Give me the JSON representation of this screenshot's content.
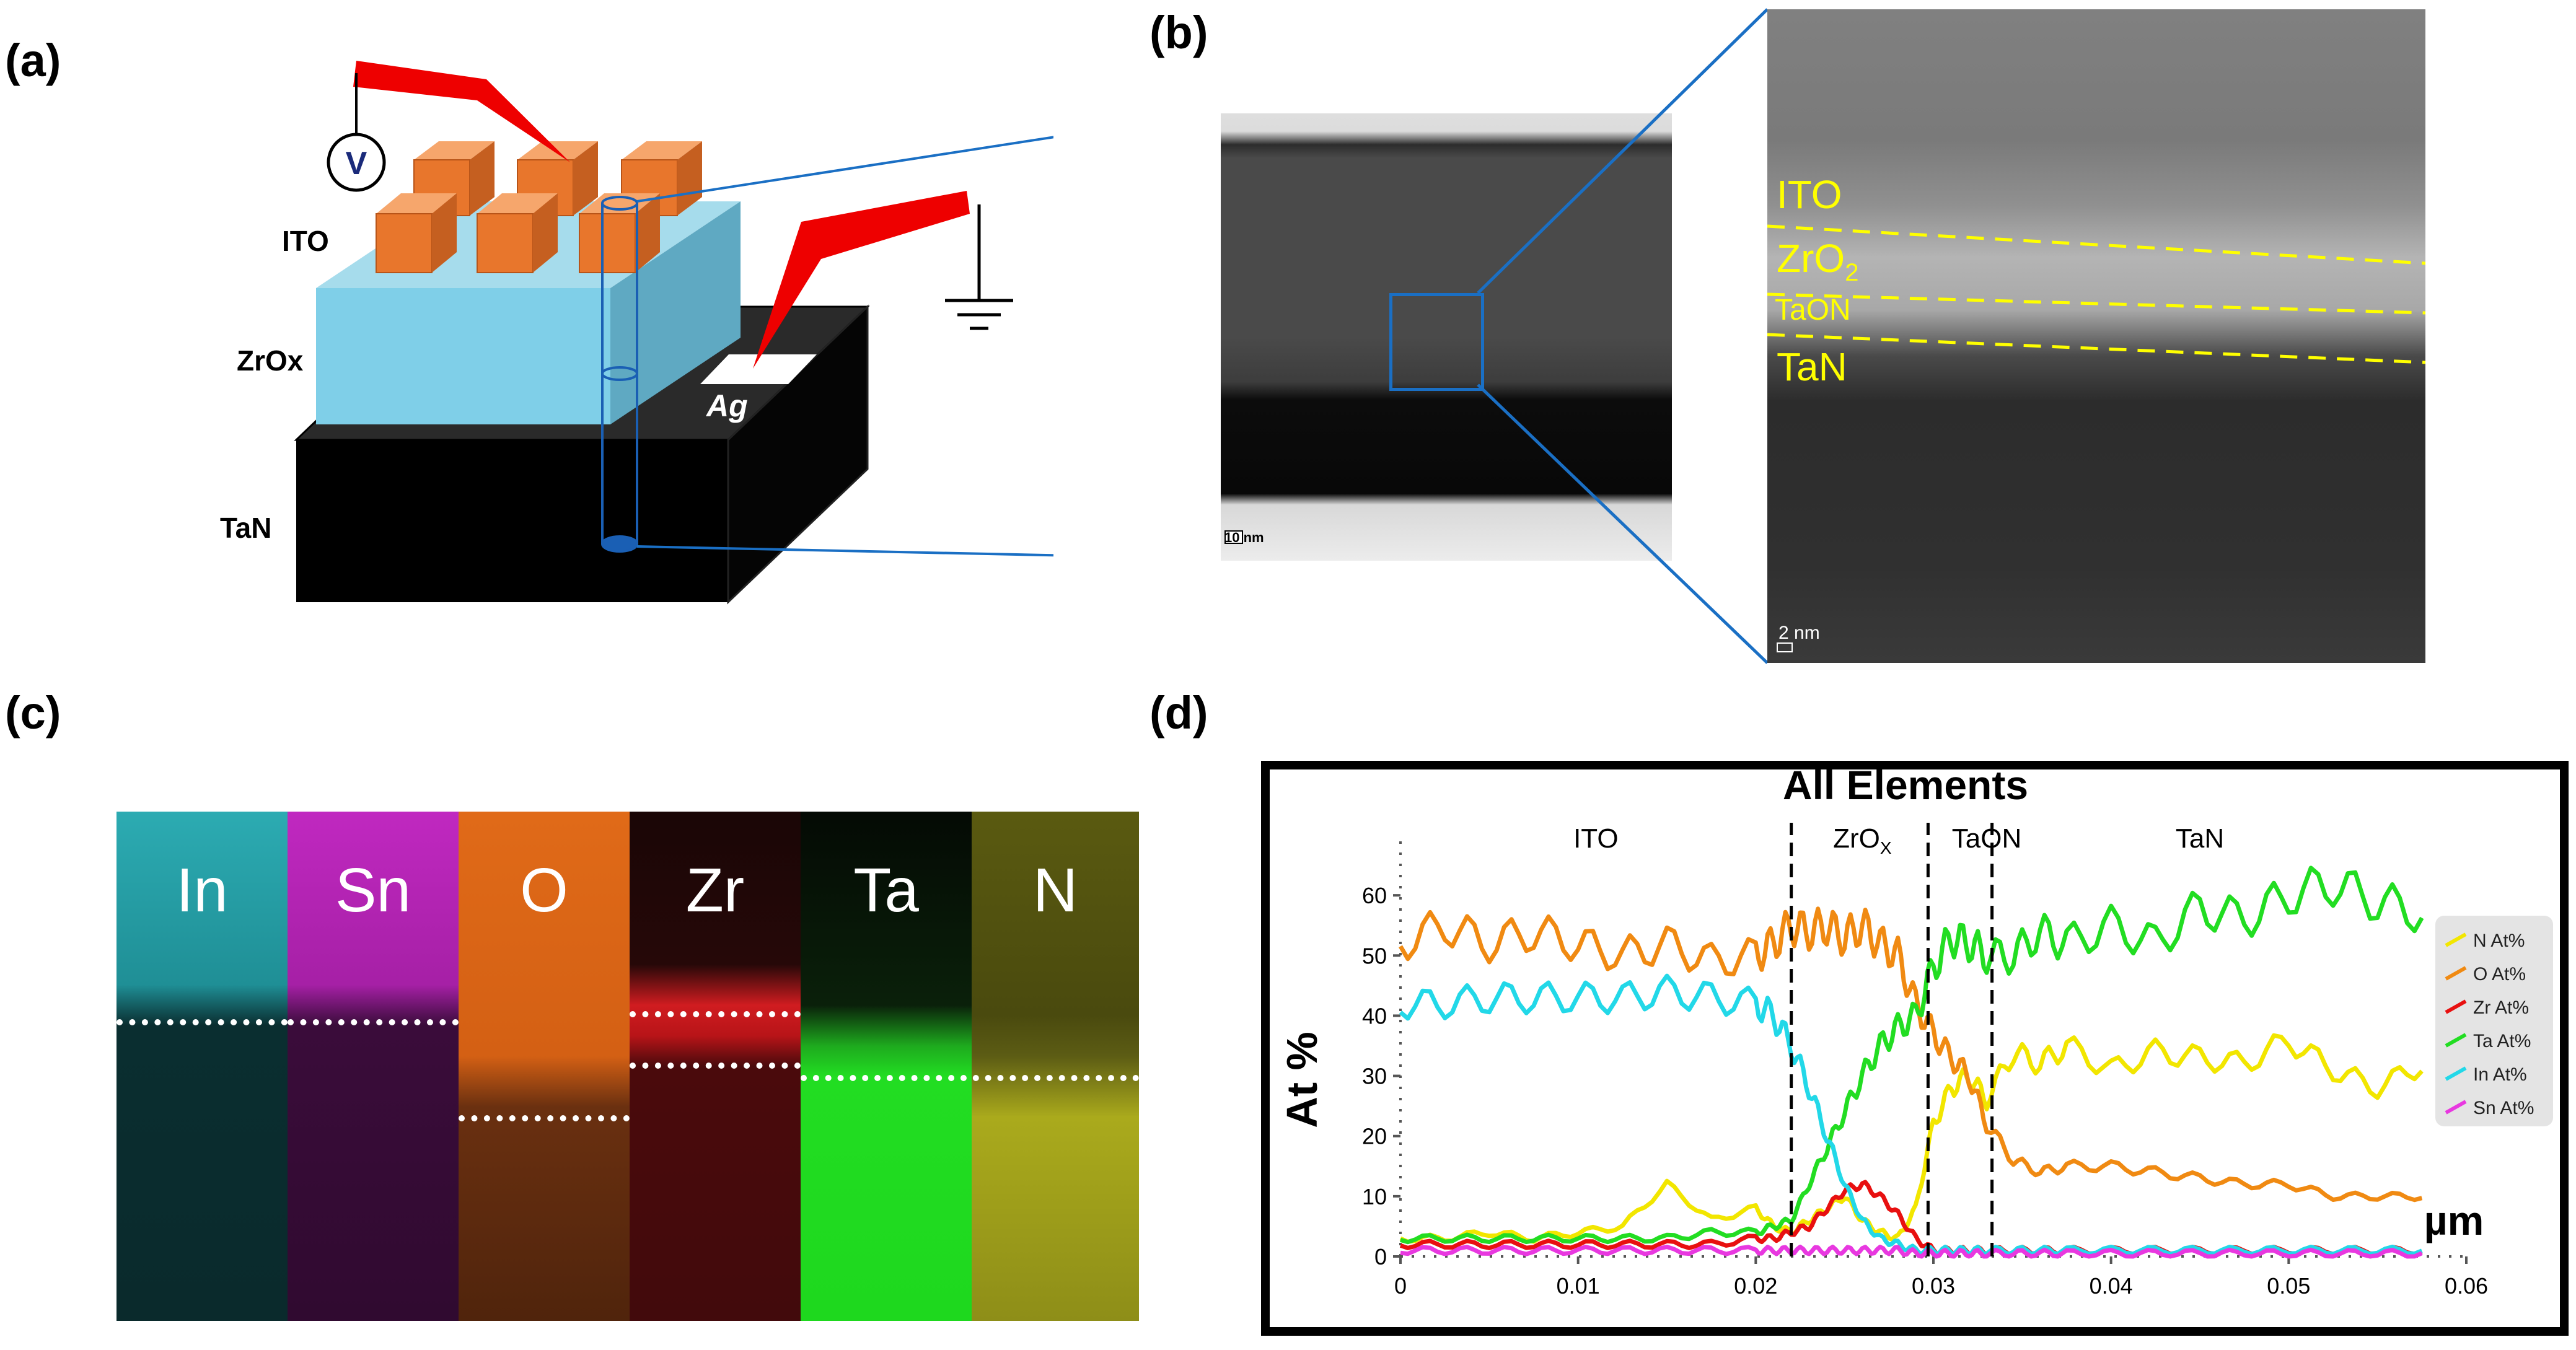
{
  "panels": {
    "a": "(a)",
    "b": "(b)",
    "c": "(c)",
    "d": "(d)"
  },
  "schematic": {
    "layers": {
      "ito": "ITO",
      "zrox": "ZrOx",
      "tan": "TaN"
    },
    "voltmeter": "V",
    "electrode": "Ag"
  },
  "tem": {
    "scale_low": "10 nm",
    "scale_high": "2 nm",
    "layers": {
      "ito": "ITO",
      "zro2": "ZrO",
      "zro2_sub": "2",
      "taon": "TaON",
      "tan": "TaN"
    }
  },
  "eds_map": {
    "elements": [
      "In",
      "Sn",
      "O",
      "Zr",
      "Ta",
      "N"
    ],
    "colors": {
      "In": "#1fb8c0",
      "Sn": "#c026c0",
      "O": "#e06a18",
      "Zr": "#cc1c20",
      "Ta": "#22dd22",
      "N": "#b8b81c"
    }
  },
  "chart_data": {
    "type": "line",
    "title": "All Elements",
    "xlabel": "µm",
    "ylabel": "At %",
    "xlim": [
      0,
      0.06
    ],
    "ylim": [
      0,
      70
    ],
    "x_ticks": [
      "0",
      "0.01",
      "0.02",
      "0.03",
      "0.04",
      "0.05",
      "0.06"
    ],
    "y_ticks": [
      "0",
      "10",
      "20",
      "30",
      "40",
      "50",
      "60"
    ],
    "regions": [
      {
        "label": "ITO",
        "x": 0.011
      },
      {
        "label": "ZrO",
        "sub": "X",
        "x": 0.026
      },
      {
        "label": "TaON",
        "x": 0.033
      },
      {
        "label": "TaN",
        "x": 0.045
      }
    ],
    "boundaries": [
      0.022,
      0.0297,
      0.0333
    ],
    "x": [
      0,
      0.0025,
      0.005,
      0.0075,
      0.01,
      0.0125,
      0.015,
      0.0175,
      0.02,
      0.021,
      0.022,
      0.023,
      0.024,
      0.025,
      0.026,
      0.027,
      0.028,
      0.029,
      0.03,
      0.031,
      0.032,
      0.033,
      0.0345,
      0.036,
      0.0375,
      0.04,
      0.0425,
      0.045,
      0.0475,
      0.05,
      0.0525,
      0.055,
      0.0575
    ],
    "series": [
      {
        "name": "N At%",
        "color": "#f2e600",
        "values": [
          3,
          3,
          4,
          3,
          4,
          5,
          12,
          6,
          8,
          5,
          4,
          6,
          8,
          10,
          6,
          4,
          3,
          8,
          22,
          28,
          30,
          26,
          34,
          32,
          35,
          31,
          34,
          33,
          32,
          36,
          31,
          28,
          32
        ]
      },
      {
        "name": "O At%",
        "color": "#f08a12",
        "values": [
          52,
          55,
          52,
          54,
          52,
          50,
          52,
          49,
          50,
          52,
          55,
          54,
          55,
          53,
          55,
          52,
          50,
          42,
          37,
          33,
          30,
          22,
          16,
          14,
          15,
          15,
          14,
          13,
          12,
          12,
          10,
          10,
          10
        ]
      },
      {
        "name": "Zr At%",
        "color": "#e81010",
        "values": [
          2,
          2,
          2,
          2,
          2,
          2,
          2,
          2,
          3,
          3,
          4,
          5,
          8,
          11,
          12,
          10,
          7,
          3,
          1,
          1,
          1,
          1,
          1,
          1,
          1,
          1,
          1,
          1,
          1,
          1,
          1,
          1,
          1
        ]
      },
      {
        "name": "Ta At%",
        "color": "#22dd22",
        "values": [
          3,
          3,
          3,
          3,
          3,
          3,
          3,
          4,
          4,
          5,
          6,
          12,
          18,
          24,
          30,
          35,
          38,
          40,
          48,
          53,
          52,
          50,
          50,
          54,
          52,
          55,
          52,
          58,
          56,
          60,
          62,
          59,
          57
        ]
      },
      {
        "name": "In At%",
        "color": "#22d8e8",
        "values": [
          42,
          42,
          43,
          43,
          43,
          43,
          44,
          43,
          42,
          40,
          35,
          28,
          20,
          12,
          6,
          3,
          2,
          1,
          1,
          1,
          1,
          1,
          1,
          1,
          1,
          1,
          1,
          1,
          1,
          1,
          1,
          1,
          1
        ]
      },
      {
        "name": "Sn At%",
        "color": "#e838e0",
        "values": [
          1,
          1,
          1,
          1,
          1,
          1,
          1,
          1,
          1,
          1,
          1,
          1,
          1,
          1,
          1,
          1,
          1,
          0.5,
          0.5,
          0.5,
          0.5,
          0.5,
          0.5,
          0.5,
          0.5,
          0.5,
          0.5,
          0.5,
          0.5,
          0.5,
          0.5,
          0.5,
          0.5
        ]
      }
    ],
    "legend": "right"
  }
}
